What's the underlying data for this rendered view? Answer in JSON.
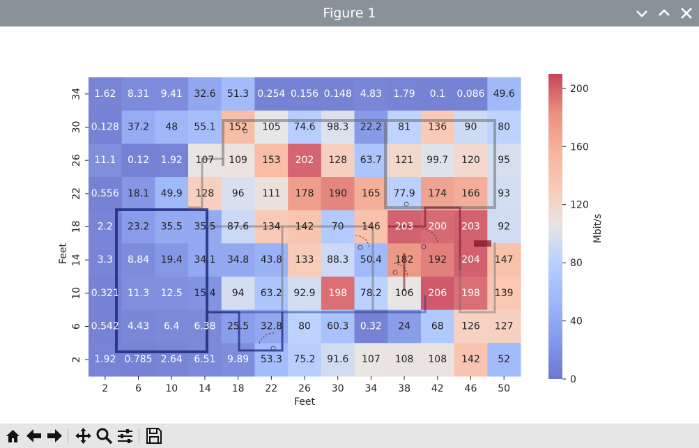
{
  "window": {
    "title": "Figure 1",
    "icons": [
      "chevron-down-icon",
      "chevron-up-icon",
      "close-icon"
    ]
  },
  "toolbar": {
    "buttons": [
      "home-icon",
      "back-icon",
      "forward-icon",
      "pan-icon",
      "zoom-icon",
      "configure-subplots-icon",
      "save-icon"
    ]
  },
  "chart_data": {
    "type": "heatmap",
    "title": "",
    "xlabel": "Feet",
    "ylabel": "Feet",
    "x_ticks": [
      "2",
      "6",
      "10",
      "14",
      "18",
      "22",
      "26",
      "30",
      "34",
      "38",
      "42",
      "46",
      "50"
    ],
    "y_ticks": [
      "34",
      "30",
      "26",
      "22",
      "18",
      "14",
      "10",
      "6",
      "2"
    ],
    "values": [
      [
        "1.62",
        "8.31",
        "9.41",
        "32.6",
        "51.3",
        "0.254",
        "0.156",
        "0.148",
        "4.83",
        "1.79",
        "0.1",
        "0.086",
        "49.6"
      ],
      [
        "0.128",
        "37.2",
        "48",
        "55.1",
        "152",
        "105",
        "74.6",
        "98.3",
        "22.2",
        "81",
        "136",
        "90",
        "80"
      ],
      [
        "11.1",
        "0.12",
        "1.92",
        "107",
        "109",
        "153",
        "202",
        "128",
        "63.7",
        "121",
        "99.7",
        "120",
        "95"
      ],
      [
        "0.556",
        "18.1",
        "49.9",
        "128",
        "96",
        "111",
        "178",
        "190",
        "165",
        "77.9",
        "174",
        "166",
        "93"
      ],
      [
        "2.2",
        "23.2",
        "35.5",
        "35.5",
        "87.6",
        "134",
        "142",
        "70",
        "146",
        "203",
        "200",
        "203",
        "92"
      ],
      [
        "3.3",
        "8.84",
        "19.4",
        "34.1",
        "34.8",
        "43.8",
        "133",
        "88.3",
        "50.4",
        "182",
        "192",
        "204",
        "147"
      ],
      [
        "0.321",
        "11.3",
        "12.5",
        "15.4",
        "94",
        "63.2",
        "92.9",
        "198",
        "78.2",
        "106",
        "206",
        "198",
        "139"
      ],
      [
        "0.542",
        "4.43",
        "6.4",
        "6.38",
        "25.5",
        "32.8",
        "80",
        "60.3",
        "0.32",
        "24",
        "68",
        "126",
        "127"
      ],
      [
        "1.92",
        "0.785",
        "2.64",
        "6.51",
        "9.89",
        "53.3",
        "75.2",
        "91.6",
        "107",
        "108",
        "108",
        "142",
        "52"
      ]
    ],
    "colorbar": {
      "label": "Mbit/s",
      "min": 0,
      "max": 210,
      "ticks": [
        "0",
        "40",
        "80",
        "120",
        "160",
        "200"
      ],
      "colormap": "coolwarm",
      "alpha": 0.7
    },
    "grid": false,
    "legend": "none"
  }
}
